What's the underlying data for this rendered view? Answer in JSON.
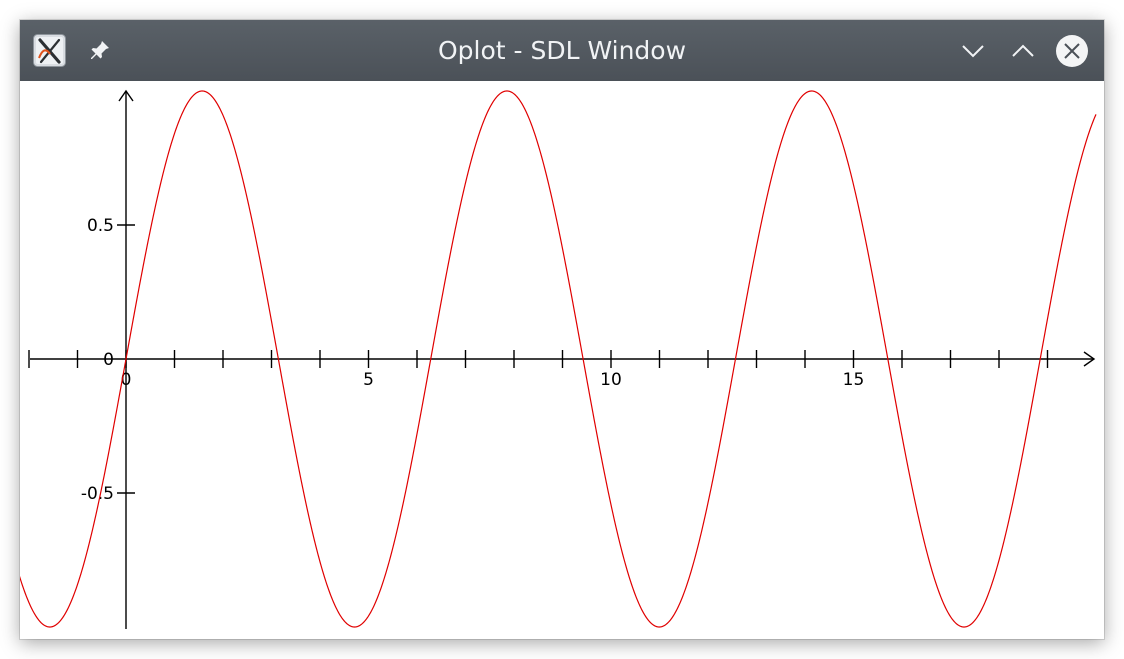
{
  "window": {
    "title": "Oplot - SDL Window"
  },
  "titlebar": {
    "icons": {
      "app": "oplot-app-icon",
      "pin": "pin-icon",
      "minimize": "chevron-down-icon",
      "maximize": "chevron-up-icon",
      "close": "close-icon"
    },
    "colors": {
      "background": "#50565d",
      "text": "#f1f3f5",
      "close_circle": "#f4f5f6"
    }
  },
  "chart_data": {
    "type": "line",
    "title": "",
    "xlabel": "",
    "ylabel": "",
    "function": "sin(x)",
    "xlim": [
      -3.9,
      20.0
    ],
    "ylim": [
      -1.0,
      1.0
    ],
    "x_ticks": [
      -2,
      -1,
      0,
      1,
      2,
      3,
      4,
      5,
      6,
      7,
      8,
      9,
      10,
      11,
      12,
      13,
      14,
      15,
      16,
      17,
      18,
      19
    ],
    "x_tick_labels": [
      {
        "x": 0,
        "label": "0"
      },
      {
        "x": 5,
        "label": "5"
      },
      {
        "x": 10,
        "label": "10"
      },
      {
        "x": 15,
        "label": "15"
      }
    ],
    "y_tick_labels": [
      {
        "y": 0.5,
        "label": "0.5"
      },
      {
        "y": 0,
        "label": "0"
      },
      {
        "y": -0.5,
        "label": "-0.5"
      }
    ],
    "series": [
      {
        "color": "#e00000",
        "points": [
          {
            "x": -3.9,
            "y": 0.688
          },
          {
            "x": -1.571,
            "y": -1.0
          },
          {
            "x": 0,
            "y": 0
          },
          {
            "x": 1.571,
            "y": 1.0
          },
          {
            "x": 3.142,
            "y": 0
          },
          {
            "x": 4.712,
            "y": -1.0
          },
          {
            "x": 6.283,
            "y": 0
          },
          {
            "x": 7.854,
            "y": 1.0
          },
          {
            "x": 9.425,
            "y": 0
          },
          {
            "x": 10.996,
            "y": -1.0
          },
          {
            "x": 12.566,
            "y": 0
          },
          {
            "x": 14.137,
            "y": 1.0
          },
          {
            "x": 15.708,
            "y": 0
          },
          {
            "x": 17.279,
            "y": -1.0
          },
          {
            "x": 18.85,
            "y": 0
          },
          {
            "x": 20.0,
            "y": 0.913
          }
        ]
      }
    ],
    "grid": false,
    "legend": "none"
  }
}
